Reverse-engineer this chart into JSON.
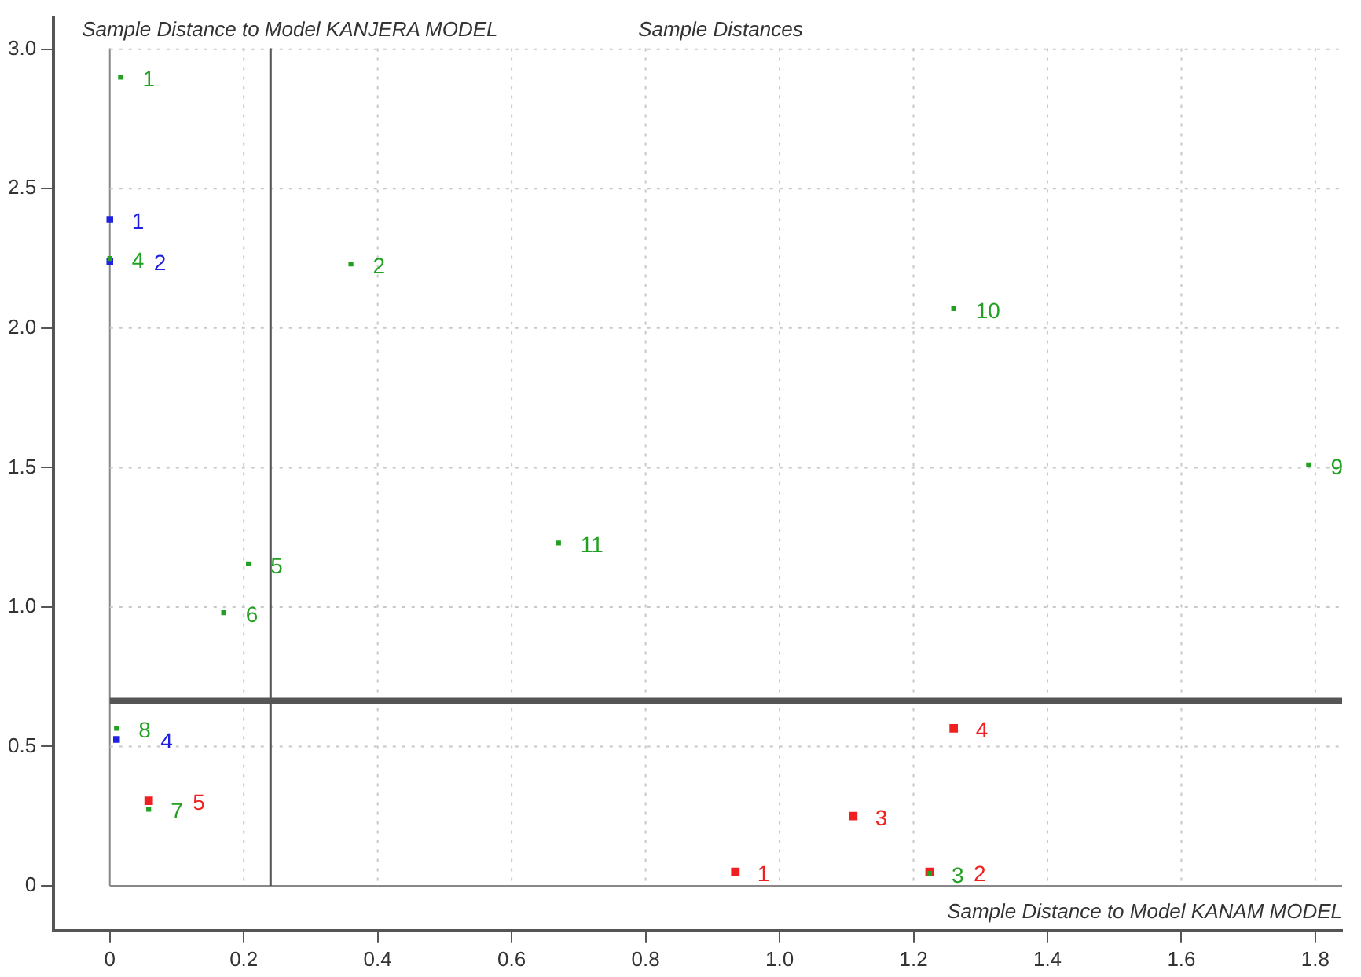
{
  "chart_data": {
    "type": "scatter",
    "title": "Sample Distances",
    "xlabel": "Sample Distance to Model KANAM MODEL",
    "ylabel": "Sample Distance to Model KANJERA MODEL",
    "xlim": [
      -0.084,
      1.84
    ],
    "ylim": [
      -0.16,
      3.116
    ],
    "xticks": [
      0,
      0.2,
      0.4,
      0.6,
      0.8,
      {
        "value": 1,
        "label": "1.0"
      },
      1.2,
      1.4,
      1.6,
      1.8
    ],
    "yticks": [
      0,
      0.5,
      {
        "value": 1,
        "label": "1.0"
      },
      1.5,
      {
        "value": 2,
        "label": "2.0"
      },
      2.5,
      {
        "value": 3,
        "label": "3.0"
      }
    ],
    "grid": true,
    "legend": false,
    "marker": "square",
    "series": [
      {
        "color": "#22a022",
        "x": [
          0.016,
          0.0,
          0.36,
          0.207,
          0.17,
          0.058,
          0.01,
          1.224,
          1.79,
          1.26,
          0.67
        ],
        "values": [
          2.9,
          2.25,
          2.23,
          1.155,
          0.98,
          0.275,
          0.565,
          0.045,
          1.51,
          2.07,
          1.23
        ]
      },
      {
        "color": "#2020e0",
        "x": [
          0.0,
          0.0,
          0.01
        ],
        "values": [
          2.39,
          2.24,
          0.525
        ]
      },
      {
        "color": "#f02020",
        "x": [
          0.934,
          1.224,
          1.11,
          1.26,
          0.058
        ],
        "values": [
          0.05,
          0.05,
          0.25,
          0.565,
          0.305
        ]
      }
    ],
    "annotations": [
      {
        "text": "1",
        "x": 0.016,
        "y": 2.9
      },
      {
        "text": "4",
        "x": 0.0,
        "y": 2.25
      },
      {
        "text": "2",
        "x": 0.36,
        "y": 2.23
      },
      {
        "text": "5",
        "x": 0.207,
        "y": 1.155
      },
      {
        "text": "6",
        "x": 0.17,
        "y": 0.98
      },
      {
        "text": "7",
        "x": 0.058,
        "y": 0.275
      },
      {
        "text": "8",
        "x": 0.01,
        "y": 0.565
      },
      {
        "text": "3",
        "x": 1.224,
        "y": 0.045
      },
      {
        "text": "9",
        "x": 1.79,
        "y": 1.51
      },
      {
        "text": "10",
        "x": 1.26,
        "y": 2.07
      },
      {
        "text": "11",
        "x": 0.67,
        "y": 1.23
      },
      {
        "text": "1",
        "x": 0.0,
        "y": 2.39
      },
      {
        "text": "2",
        "x": 0.0,
        "y": 2.24
      },
      {
        "text": "4",
        "x": 0.01,
        "y": 0.525
      },
      {
        "text": "1",
        "x": 0.934,
        "y": 0.05
      },
      {
        "text": "2",
        "x": 1.224,
        "y": 0.05
      },
      {
        "text": "3",
        "x": 1.11,
        "y": 0.25
      },
      {
        "text": "4",
        "x": 1.26,
        "y": 0.565
      },
      {
        "text": "5",
        "x": 0.058,
        "y": 0.305
      }
    ],
    "ref_lines": [
      {
        "axis": "y",
        "value": 0.663,
        "color": "#555555"
      },
      {
        "axis": "x",
        "value": 0.24,
        "color": "#555555"
      }
    ]
  }
}
